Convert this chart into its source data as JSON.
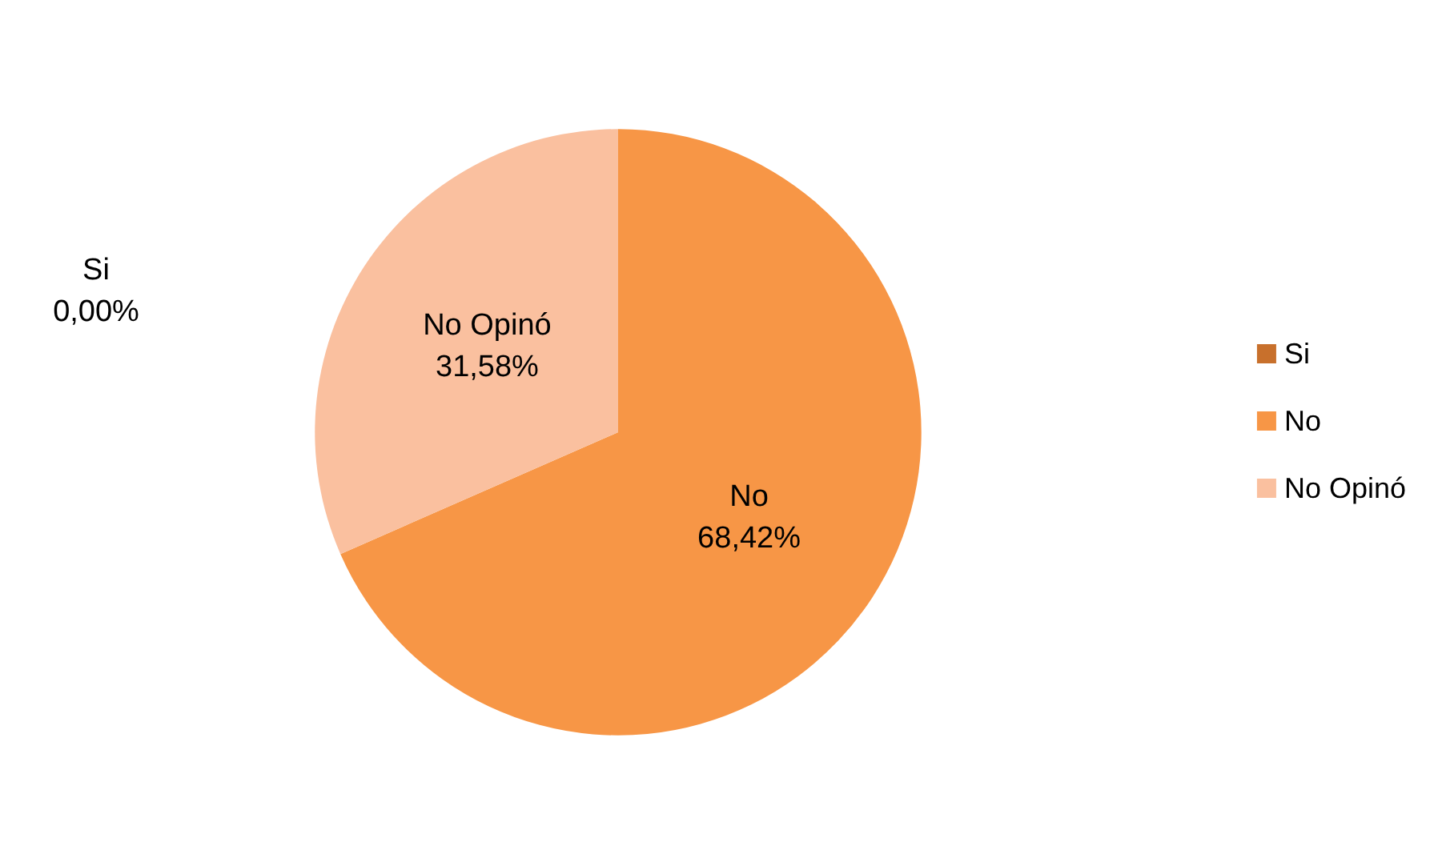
{
  "chart_data": {
    "type": "pie",
    "categories": [
      "Si",
      "No",
      "No Opinó"
    ],
    "values": [
      0,
      68.42,
      31.58
    ],
    "colors": [
      "#c8702c",
      "#f79646",
      "#fac09f"
    ],
    "value_labels": [
      "0,00%",
      "68,42%",
      "31,58%"
    ],
    "legend": "right"
  }
}
